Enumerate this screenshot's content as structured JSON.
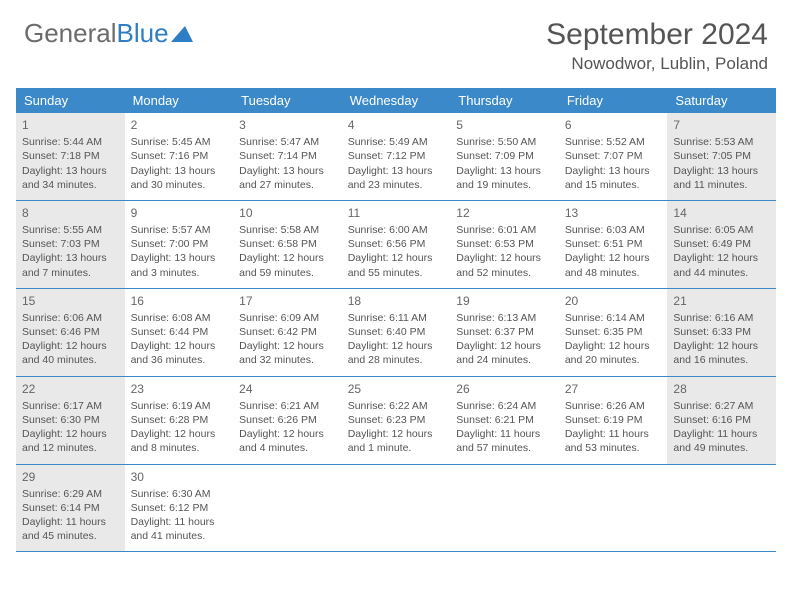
{
  "logo": {
    "text1": "General",
    "text2": "Blue"
  },
  "title": "September 2024",
  "location": "Nowodwor, Lublin, Poland",
  "colors": {
    "header_bg": "#3b89c9",
    "header_text": "#ffffff",
    "shaded_bg": "#e9e9e9",
    "border": "#3b89c9",
    "text": "#555555",
    "logo_gray": "#6b6b6b",
    "logo_blue": "#2f7dc4"
  },
  "weekdays": [
    "Sunday",
    "Monday",
    "Tuesday",
    "Wednesday",
    "Thursday",
    "Friday",
    "Saturday"
  ],
  "days": [
    {
      "n": "1",
      "sr": "Sunrise: 5:44 AM",
      "ss": "Sunset: 7:18 PM",
      "d1": "Daylight: 13 hours",
      "d2": "and 34 minutes.",
      "shaded": true
    },
    {
      "n": "2",
      "sr": "Sunrise: 5:45 AM",
      "ss": "Sunset: 7:16 PM",
      "d1": "Daylight: 13 hours",
      "d2": "and 30 minutes.",
      "shaded": false
    },
    {
      "n": "3",
      "sr": "Sunrise: 5:47 AM",
      "ss": "Sunset: 7:14 PM",
      "d1": "Daylight: 13 hours",
      "d2": "and 27 minutes.",
      "shaded": false
    },
    {
      "n": "4",
      "sr": "Sunrise: 5:49 AM",
      "ss": "Sunset: 7:12 PM",
      "d1": "Daylight: 13 hours",
      "d2": "and 23 minutes.",
      "shaded": false
    },
    {
      "n": "5",
      "sr": "Sunrise: 5:50 AM",
      "ss": "Sunset: 7:09 PM",
      "d1": "Daylight: 13 hours",
      "d2": "and 19 minutes.",
      "shaded": false
    },
    {
      "n": "6",
      "sr": "Sunrise: 5:52 AM",
      "ss": "Sunset: 7:07 PM",
      "d1": "Daylight: 13 hours",
      "d2": "and 15 minutes.",
      "shaded": false
    },
    {
      "n": "7",
      "sr": "Sunrise: 5:53 AM",
      "ss": "Sunset: 7:05 PM",
      "d1": "Daylight: 13 hours",
      "d2": "and 11 minutes.",
      "shaded": true
    },
    {
      "n": "8",
      "sr": "Sunrise: 5:55 AM",
      "ss": "Sunset: 7:03 PM",
      "d1": "Daylight: 13 hours",
      "d2": "and 7 minutes.",
      "shaded": true
    },
    {
      "n": "9",
      "sr": "Sunrise: 5:57 AM",
      "ss": "Sunset: 7:00 PM",
      "d1": "Daylight: 13 hours",
      "d2": "and 3 minutes.",
      "shaded": false
    },
    {
      "n": "10",
      "sr": "Sunrise: 5:58 AM",
      "ss": "Sunset: 6:58 PM",
      "d1": "Daylight: 12 hours",
      "d2": "and 59 minutes.",
      "shaded": false
    },
    {
      "n": "11",
      "sr": "Sunrise: 6:00 AM",
      "ss": "Sunset: 6:56 PM",
      "d1": "Daylight: 12 hours",
      "d2": "and 55 minutes.",
      "shaded": false
    },
    {
      "n": "12",
      "sr": "Sunrise: 6:01 AM",
      "ss": "Sunset: 6:53 PM",
      "d1": "Daylight: 12 hours",
      "d2": "and 52 minutes.",
      "shaded": false
    },
    {
      "n": "13",
      "sr": "Sunrise: 6:03 AM",
      "ss": "Sunset: 6:51 PM",
      "d1": "Daylight: 12 hours",
      "d2": "and 48 minutes.",
      "shaded": false
    },
    {
      "n": "14",
      "sr": "Sunrise: 6:05 AM",
      "ss": "Sunset: 6:49 PM",
      "d1": "Daylight: 12 hours",
      "d2": "and 44 minutes.",
      "shaded": true
    },
    {
      "n": "15",
      "sr": "Sunrise: 6:06 AM",
      "ss": "Sunset: 6:46 PM",
      "d1": "Daylight: 12 hours",
      "d2": "and 40 minutes.",
      "shaded": true
    },
    {
      "n": "16",
      "sr": "Sunrise: 6:08 AM",
      "ss": "Sunset: 6:44 PM",
      "d1": "Daylight: 12 hours",
      "d2": "and 36 minutes.",
      "shaded": false
    },
    {
      "n": "17",
      "sr": "Sunrise: 6:09 AM",
      "ss": "Sunset: 6:42 PM",
      "d1": "Daylight: 12 hours",
      "d2": "and 32 minutes.",
      "shaded": false
    },
    {
      "n": "18",
      "sr": "Sunrise: 6:11 AM",
      "ss": "Sunset: 6:40 PM",
      "d1": "Daylight: 12 hours",
      "d2": "and 28 minutes.",
      "shaded": false
    },
    {
      "n": "19",
      "sr": "Sunrise: 6:13 AM",
      "ss": "Sunset: 6:37 PM",
      "d1": "Daylight: 12 hours",
      "d2": "and 24 minutes.",
      "shaded": false
    },
    {
      "n": "20",
      "sr": "Sunrise: 6:14 AM",
      "ss": "Sunset: 6:35 PM",
      "d1": "Daylight: 12 hours",
      "d2": "and 20 minutes.",
      "shaded": false
    },
    {
      "n": "21",
      "sr": "Sunrise: 6:16 AM",
      "ss": "Sunset: 6:33 PM",
      "d1": "Daylight: 12 hours",
      "d2": "and 16 minutes.",
      "shaded": true
    },
    {
      "n": "22",
      "sr": "Sunrise: 6:17 AM",
      "ss": "Sunset: 6:30 PM",
      "d1": "Daylight: 12 hours",
      "d2": "and 12 minutes.",
      "shaded": true
    },
    {
      "n": "23",
      "sr": "Sunrise: 6:19 AM",
      "ss": "Sunset: 6:28 PM",
      "d1": "Daylight: 12 hours",
      "d2": "and 8 minutes.",
      "shaded": false
    },
    {
      "n": "24",
      "sr": "Sunrise: 6:21 AM",
      "ss": "Sunset: 6:26 PM",
      "d1": "Daylight: 12 hours",
      "d2": "and 4 minutes.",
      "shaded": false
    },
    {
      "n": "25",
      "sr": "Sunrise: 6:22 AM",
      "ss": "Sunset: 6:23 PM",
      "d1": "Daylight: 12 hours",
      "d2": "and 1 minute.",
      "shaded": false
    },
    {
      "n": "26",
      "sr": "Sunrise: 6:24 AM",
      "ss": "Sunset: 6:21 PM",
      "d1": "Daylight: 11 hours",
      "d2": "and 57 minutes.",
      "shaded": false
    },
    {
      "n": "27",
      "sr": "Sunrise: 6:26 AM",
      "ss": "Sunset: 6:19 PM",
      "d1": "Daylight: 11 hours",
      "d2": "and 53 minutes.",
      "shaded": false
    },
    {
      "n": "28",
      "sr": "Sunrise: 6:27 AM",
      "ss": "Sunset: 6:16 PM",
      "d1": "Daylight: 11 hours",
      "d2": "and 49 minutes.",
      "shaded": true
    },
    {
      "n": "29",
      "sr": "Sunrise: 6:29 AM",
      "ss": "Sunset: 6:14 PM",
      "d1": "Daylight: 11 hours",
      "d2": "and 45 minutes.",
      "shaded": true
    },
    {
      "n": "30",
      "sr": "Sunrise: 6:30 AM",
      "ss": "Sunset: 6:12 PM",
      "d1": "Daylight: 11 hours",
      "d2": "and 41 minutes.",
      "shaded": false
    }
  ]
}
